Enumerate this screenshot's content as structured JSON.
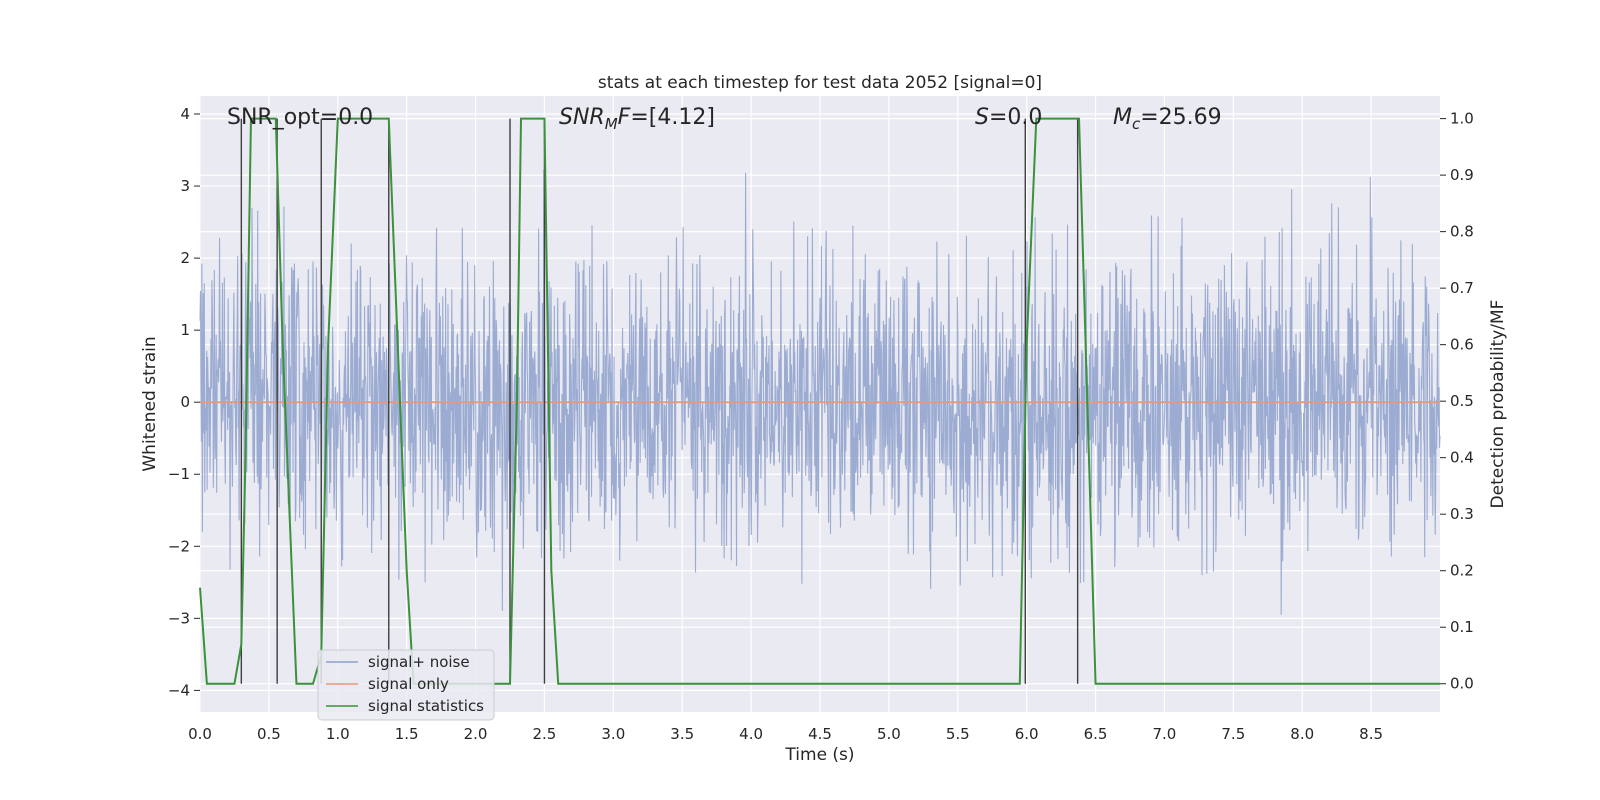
{
  "chart_data": {
    "type": "line",
    "title": "stats at each timestep for test data 2052 [signal=0]",
    "xlabel": "Time (s)",
    "ylabel_left": "Whitened strain",
    "ylabel_right": "Detection probability/MF",
    "xlim": [
      0.0,
      9.0
    ],
    "ylim_left": [
      -4.3,
      4.25
    ],
    "ylim_right": [
      -0.05,
      1.04
    ],
    "grid": true,
    "legend_placement": "lower-left",
    "x_ticks": [
      "0.0",
      "0.5",
      "1.0",
      "1.5",
      "2.0",
      "2.5",
      "3.0",
      "3.5",
      "4.0",
      "4.5",
      "5.0",
      "5.5",
      "6.0",
      "6.5",
      "7.0",
      "7.5",
      "8.0",
      "8.5"
    ],
    "y_ticks_left": [
      "4",
      "3",
      "2",
      "1",
      "0",
      "−1",
      "−2",
      "−3",
      "−4"
    ],
    "y_ticks_right": [
      "1.0",
      "0.9",
      "0.8",
      "0.7",
      "0.6",
      "0.5",
      "0.4",
      "0.3",
      "0.2",
      "0.1",
      "0.0"
    ],
    "annotations": {
      "snr_opt": "SNR_opt=0.0",
      "snr_mf_prefix": "SNR",
      "snr_mf_sub": "M",
      "snr_mf_suffix": "F",
      "snr_mf_value": "=[4.12]",
      "s_label": "S",
      "s_value": "=0.0",
      "mc_label": "M",
      "mc_sub": "c",
      "mc_value": "=25.69"
    },
    "series": [
      {
        "name": "signal+ noise",
        "color": "#8da0cb",
        "axis": "left",
        "description_range": [
          -4.0,
          4.0
        ]
      },
      {
        "name": "signal only",
        "color": "#e9967a",
        "axis": "left",
        "x": [
          0.0,
          9.0
        ],
        "y": [
          0.0,
          0.0
        ]
      },
      {
        "name": "signal statistics",
        "color": "#3a923a",
        "axis": "right",
        "x": [
          0.0,
          0.05,
          0.12,
          0.25,
          0.3,
          0.33,
          0.37,
          0.55,
          0.6,
          0.7,
          0.82,
          0.88,
          0.93,
          1.0,
          1.37,
          1.5,
          1.55,
          2.25,
          2.3,
          2.33,
          2.5,
          2.55,
          2.6,
          5.95,
          6.0,
          6.07,
          6.38,
          6.5,
          9.0
        ],
        "y": [
          0.17,
          0.0,
          0.0,
          0.0,
          0.07,
          0.4,
          1.0,
          1.0,
          0.6,
          0.0,
          0.0,
          0.05,
          0.6,
          1.0,
          1.0,
          0.2,
          0.0,
          0.0,
          0.5,
          1.0,
          1.0,
          0.2,
          0.0,
          0.0,
          0.6,
          1.0,
          1.0,
          0.0,
          0.0
        ]
      }
    ],
    "vertical_lines": [
      0.3,
      0.56,
      0.88,
      1.37,
      2.25,
      2.5,
      5.99,
      6.37
    ],
    "vertical_line_range": [
      0.0,
      1.0
    ]
  }
}
